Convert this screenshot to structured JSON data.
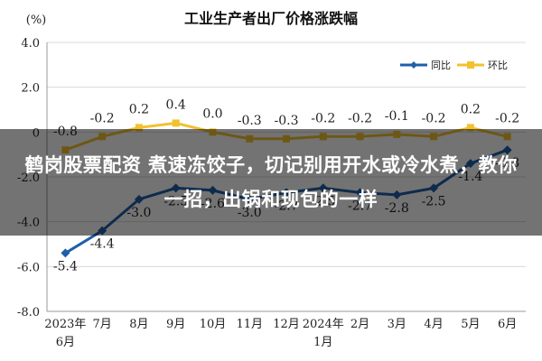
{
  "chart_data": {
    "type": "line",
    "title": "工业生产者出厂价格涨跌幅",
    "ylabel": "(%)",
    "ylim": [
      -8.0,
      4.0
    ],
    "yticks": [
      "4.0",
      "2.0",
      "0",
      "-2.0",
      "-4.0",
      "-6.0",
      "-8.0"
    ],
    "categories": [
      "2023年6月",
      "7月",
      "8月",
      "9月",
      "10月",
      "11月",
      "12月",
      "2024年1月",
      "2月",
      "3月",
      "4月",
      "5月",
      "6月"
    ],
    "series": [
      {
        "name": "同比",
        "color": "#1f5fa8",
        "values": [
          -5.4,
          -4.4,
          -3.0,
          -2.5,
          -2.6,
          -3.0,
          -2.7,
          -2.5,
          -2.7,
          -2.8,
          -2.5,
          -1.4,
          -0.8
        ],
        "labels": [
          "-5.4",
          "-4.4",
          "-3.0",
          "-2.5",
          "-2.6",
          "-3.0",
          "-2.7",
          "-2.5",
          "-2.7",
          "-2.8",
          "-2.5",
          "-1.4",
          "-0.8"
        ]
      },
      {
        "name": "环比",
        "color": "#f2c12e",
        "values": [
          -0.8,
          -0.2,
          0.2,
          0.4,
          0.0,
          -0.3,
          -0.3,
          -0.2,
          -0.2,
          -0.1,
          -0.2,
          0.2,
          -0.2
        ],
        "labels": [
          "-0.8",
          "-0.2",
          "0.2",
          "0.4",
          "0.0",
          "-0.3",
          "-0.3",
          "-0.2",
          "-0.2",
          "-0.1",
          "-0.2",
          "0.2",
          "-0.2"
        ]
      }
    ],
    "legend_position": "top-right",
    "grid": true
  },
  "overlay": {
    "caption": "鹤岗股票配资 煮速冻饺子，切记别用开水或冷水煮，教你一招，出锅和现包的一样"
  }
}
